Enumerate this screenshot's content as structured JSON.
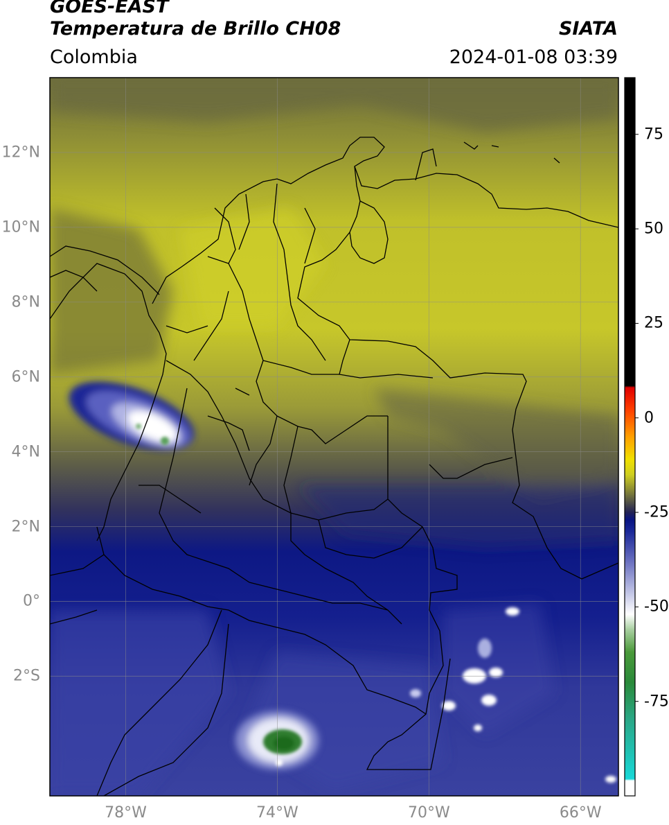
{
  "header": {
    "satellite": "GOES-EAST",
    "product": "Temperatura de Brillo CH08",
    "org": "SIATA",
    "region": "Colombia",
    "datetime": "2024-01-08 03:39"
  },
  "map": {
    "lat_range": [
      -5.2,
      14.0
    ],
    "lon_range": [
      -80.0,
      -65.0
    ],
    "lat_ticks": [
      {
        "value": 12,
        "label": "12°N"
      },
      {
        "value": 10,
        "label": "10°N"
      },
      {
        "value": 8,
        "label": "8°N"
      },
      {
        "value": 6,
        "label": "6°N"
      },
      {
        "value": 4,
        "label": "4°N"
      },
      {
        "value": 2,
        "label": "2°N"
      },
      {
        "value": 0,
        "label": "0°"
      },
      {
        "value": -2,
        "label": "2°S"
      }
    ],
    "lon_ticks": [
      {
        "value": -78,
        "label": "78°W"
      },
      {
        "value": -74,
        "label": "74°W"
      },
      {
        "value": -70,
        "label": "70°W"
      },
      {
        "value": -66,
        "label": "66°W"
      }
    ],
    "grid": true
  },
  "colorbar": {
    "range": [
      -100,
      90
    ],
    "ticks": [
      {
        "value": 75,
        "label": "75"
      },
      {
        "value": 50,
        "label": "50"
      },
      {
        "value": 25,
        "label": "25"
      },
      {
        "value": 0,
        "label": "0"
      },
      {
        "value": -25,
        "label": "-25"
      },
      {
        "value": -50,
        "label": "-50"
      },
      {
        "value": -75,
        "label": "-75"
      }
    ],
    "stops": [
      {
        "v": -100,
        "c": "#ffffff"
      },
      {
        "v": -96,
        "c": "#ffffff"
      },
      {
        "v": -95.5,
        "c": "#18d8d8"
      },
      {
        "v": -88,
        "c": "#20c0b0"
      },
      {
        "v": -80,
        "c": "#2aa888"
      },
      {
        "v": -70,
        "c": "#2a8a3a"
      },
      {
        "v": -62,
        "c": "#4a9a3a"
      },
      {
        "v": -56,
        "c": "#a8cfa0"
      },
      {
        "v": -52,
        "c": "#ffffff"
      },
      {
        "v": -45,
        "c": "#b4b8e0"
      },
      {
        "v": -38,
        "c": "#6a70c0"
      },
      {
        "v": -30,
        "c": "#1a2898"
      },
      {
        "v": -27,
        "c": "#081482"
      },
      {
        "v": -25,
        "c": "#222255"
      },
      {
        "v": -20,
        "c": "#7a7a3a"
      },
      {
        "v": -15,
        "c": "#cfcf20"
      },
      {
        "v": -11,
        "c": "#f0e000"
      },
      {
        "v": -5,
        "c": "#ffa000"
      },
      {
        "v": 2,
        "c": "#ff4000"
      },
      {
        "v": 8,
        "c": "#e00000"
      },
      {
        "v": 8.5,
        "c": "#000000"
      },
      {
        "v": 90,
        "c": "#000000"
      }
    ]
  },
  "colors": {
    "upper_level": "#c5c530",
    "mid_level": "#5a5a3e",
    "cold_level": "#15208e",
    "frame": "#000000",
    "grid": "#8a8a8a"
  }
}
